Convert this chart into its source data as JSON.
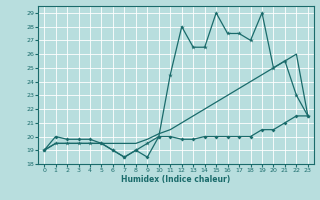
{
  "xlabel": "Humidex (Indice chaleur)",
  "x_values": [
    0,
    1,
    2,
    3,
    4,
    5,
    6,
    7,
    8,
    9,
    10,
    11,
    12,
    13,
    14,
    15,
    16,
    17,
    18,
    19,
    20,
    21,
    22,
    23
  ],
  "line1_smooth": [
    19,
    19.5,
    19.5,
    19.5,
    19.5,
    19.5,
    19.5,
    19.5,
    19.5,
    19.8,
    20.2,
    20.5,
    21,
    21.5,
    22,
    22.5,
    23,
    23.5,
    24,
    24.5,
    25,
    25.5,
    26,
    21.5
  ],
  "line2_zigzag": [
    19,
    20,
    19.8,
    19.8,
    19.8,
    19.5,
    19,
    18.5,
    19,
    18.5,
    20,
    20,
    19.8,
    19.8,
    20,
    20,
    20,
    20,
    20,
    20.5,
    20.5,
    21,
    21.5,
    21.5
  ],
  "line3_peak": [
    19,
    19.5,
    19.5,
    19.5,
    19.5,
    19.5,
    19,
    18.5,
    19,
    19.5,
    20,
    24.5,
    28,
    26.5,
    26.5,
    29,
    27.5,
    27.5,
    27,
    29,
    25,
    25.5,
    23,
    21.5
  ],
  "bg_color": "#b8dede",
  "line_color": "#1a6b6b",
  "grid_color": "#d0d0d0",
  "xlim": [
    -0.5,
    23.5
  ],
  "ylim": [
    18,
    29.5
  ],
  "yticks": [
    18,
    19,
    20,
    21,
    22,
    23,
    24,
    25,
    26,
    27,
    28,
    29
  ],
  "xticks": [
    0,
    1,
    2,
    3,
    4,
    5,
    6,
    7,
    8,
    9,
    10,
    11,
    12,
    13,
    14,
    15,
    16,
    17,
    18,
    19,
    20,
    21,
    22,
    23
  ]
}
